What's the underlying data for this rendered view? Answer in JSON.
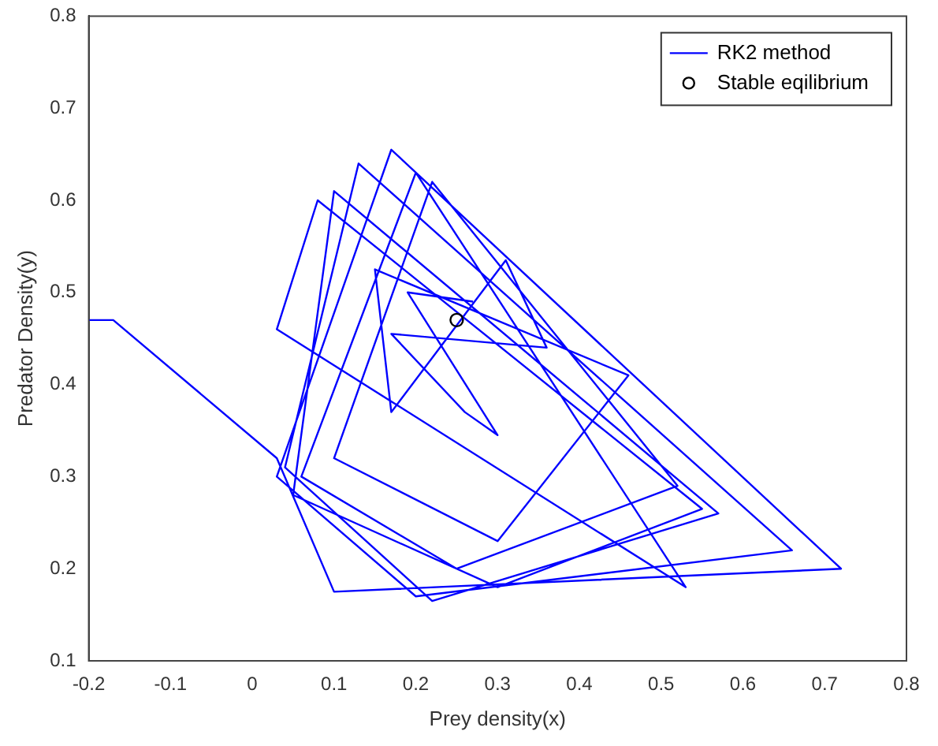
{
  "chart_data": {
    "type": "line",
    "xlabel": "Prey density(x)",
    "ylabel": "Predator Density(y)",
    "xlim": [
      -0.2,
      0.8
    ],
    "xticks": [
      -0.2,
      -0.1,
      0,
      0.1,
      0.2,
      0.3,
      0.4,
      0.5,
      0.6,
      0.7,
      0.8
    ],
    "ylim": [
      0.1,
      0.8
    ],
    "yticks": [
      0.1,
      0.2,
      0.3,
      0.4,
      0.5,
      0.6,
      0.7,
      0.8
    ],
    "grid": false,
    "legend": "top right",
    "series": [
      {
        "name": "RK2 method",
        "type": "line",
        "color": "#0000ff",
        "marker": "none",
        "line_style": "solid",
        "x": [
          -0.2,
          -0.17,
          0.03,
          0.1,
          0.72,
          0.17,
          0.03,
          0.2,
          0.66,
          0.13,
          0.04,
          0.22,
          0.57,
          0.1,
          0.05,
          0.3,
          0.55,
          0.08,
          0.03,
          0.53,
          0.2,
          0.06,
          0.25,
          0.52,
          0.22,
          0.1,
          0.3,
          0.46,
          0.15,
          0.17,
          0.31,
          0.36,
          0.17,
          0.26,
          0.3,
          0.19,
          0.27
        ],
        "values": [
          0.47,
          0.47,
          0.32,
          0.175,
          0.2,
          0.655,
          0.3,
          0.17,
          0.22,
          0.64,
          0.31,
          0.165,
          0.26,
          0.61,
          0.28,
          0.18,
          0.265,
          0.6,
          0.46,
          0.18,
          0.63,
          0.3,
          0.2,
          0.29,
          0.62,
          0.32,
          0.23,
          0.41,
          0.525,
          0.37,
          0.535,
          0.44,
          0.455,
          0.37,
          0.345,
          0.5,
          0.49
        ]
      },
      {
        "name": "Stable eqilibrium",
        "type": "scatter",
        "color": "#000000",
        "marker": "circle",
        "x": [
          0.25
        ],
        "values": [
          0.47
        ]
      }
    ]
  }
}
